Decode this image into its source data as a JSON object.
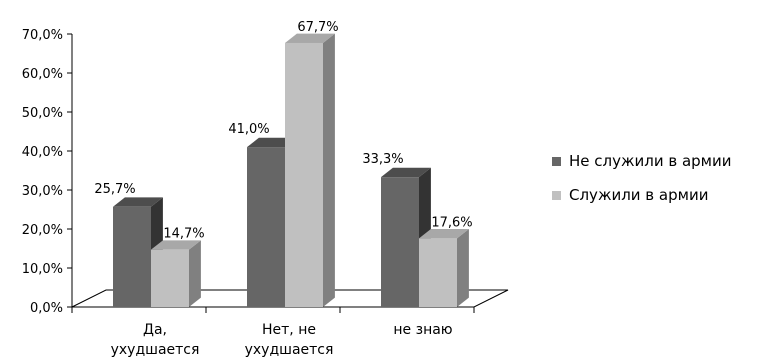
{
  "chart_data": {
    "type": "bar",
    "categories": [
      [
        "Да,",
        "ухудшается"
      ],
      [
        "Нет, не",
        "ухудшается"
      ],
      [
        "не знаю"
      ]
    ],
    "series": [
      {
        "name": "Не служили в армии",
        "values": [
          25.7,
          41.0,
          33.3
        ],
        "labels": [
          "25,7%",
          "41,0%",
          "33,3%"
        ],
        "color": "#666666"
      },
      {
        "name": "Служили в армии",
        "values": [
          14.7,
          67.7,
          17.6
        ],
        "labels": [
          "14,7%",
          "67,7%",
          "17,6%"
        ],
        "color": "#c0c0c0"
      }
    ],
    "y_ticks": [
      "0,0%",
      "10,0%",
      "20,0%",
      "30,0%",
      "40,0%",
      "50,0%",
      "60,0%",
      "70,0%"
    ],
    "ylim": [
      0,
      70
    ],
    "legend_position": "right",
    "grid": false,
    "style": "3d-column"
  }
}
